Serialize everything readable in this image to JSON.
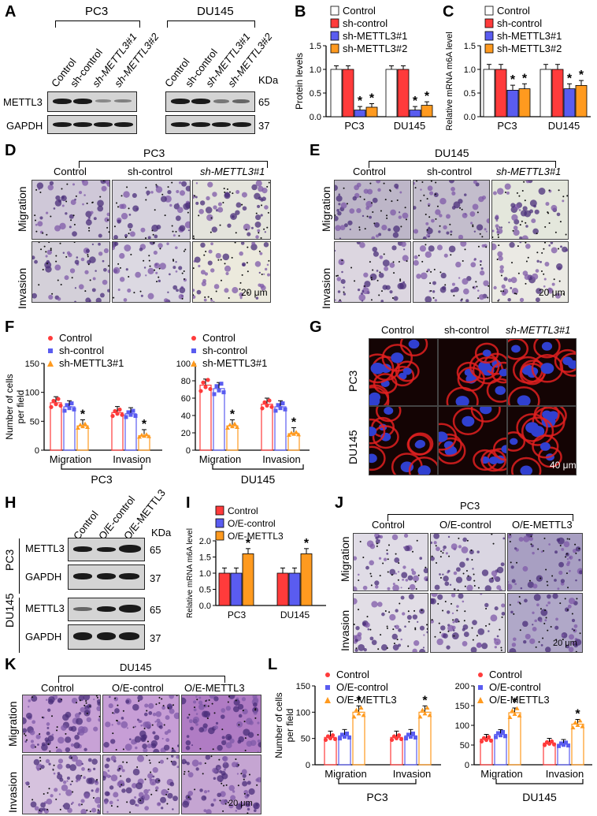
{
  "panel_letters": [
    "A",
    "B",
    "C",
    "D",
    "E",
    "F",
    "G",
    "H",
    "I",
    "J",
    "K",
    "L"
  ],
  "A": {
    "groups": [
      "PC3",
      "DU145"
    ],
    "lanes": [
      "Control",
      "sh-control",
      "sh-METTL3#1",
      "sh-METTL3#2"
    ],
    "rows": [
      "METTL3",
      "GAPDH"
    ],
    "kda": "KDa",
    "sizes": [
      "65",
      "37"
    ]
  },
  "B": {
    "ylabel": "Protein levels"
  },
  "C": {
    "ylabel": "Relative mRNA m6A level"
  },
  "legend4": [
    "Control",
    "sh-control",
    "sh-METTL3#1",
    "sh-METTL3#2"
  ],
  "legend3": [
    "Control",
    "sh-control",
    "sh-METTL3#1"
  ],
  "legendOE": [
    "Control",
    "O/E-control",
    "O/E-METTL3"
  ],
  "D": {
    "title": "PC3",
    "cols": [
      "Control",
      "sh-control",
      "sh-METTL3#1"
    ],
    "rows": [
      "Migration",
      "Invasion"
    ],
    "scale": "20 μm"
  },
  "E": {
    "title": "DU145",
    "cols": [
      "Control",
      "sh-control",
      "sh-METTL3#1"
    ],
    "rows": [
      "Migration",
      "Invasion"
    ],
    "scale": "20 μm"
  },
  "F": {
    "ylabel": "Number of cells per field",
    "groups": [
      "Migration",
      "Invasion"
    ],
    "cell_lines": [
      "PC3",
      "DU145"
    ]
  },
  "G": {
    "cols": [
      "Control",
      "sh-control",
      "sh-METTL3#1"
    ],
    "rows": [
      "PC3",
      "DU145"
    ],
    "scale": "40 μm"
  },
  "H": {
    "lanes": [
      "Control",
      "O/E-control",
      "O/E-METTL3"
    ],
    "kda": "KDa",
    "lines": [
      "PC3",
      "DU145"
    ],
    "rows": [
      "METTL3",
      "GAPDH"
    ],
    "sizes": [
      "65",
      "37"
    ]
  },
  "I": {
    "ylabel": "Relative mRNA m6A level",
    "star": "*"
  },
  "J": {
    "title": "PC3",
    "cols": [
      "Control",
      "O/E-control",
      "O/E-METTL3"
    ],
    "rows": [
      "Migration",
      "Invasion"
    ],
    "scale": "20 μm"
  },
  "K": {
    "title": "DU145",
    "cols": [
      "Control",
      "O/E-control",
      "O/E-METTL3"
    ],
    "rows": [
      "Migration",
      "Invasion"
    ],
    "scale": "20 μm"
  },
  "L": {
    "ylabel": "Number of cells per field"
  },
  "chart_data": [
    {
      "id": "B",
      "type": "bar",
      "categories": [
        "PC3",
        "DU145"
      ],
      "series": [
        {
          "name": "Control",
          "values": [
            1.0,
            1.0
          ]
        },
        {
          "name": "sh-control",
          "values": [
            1.0,
            1.0
          ]
        },
        {
          "name": "sh-METTL3#1",
          "values": [
            0.14,
            0.14
          ]
        },
        {
          "name": "sh-METTL3#2",
          "values": [
            0.2,
            0.24
          ]
        }
      ],
      "ylabel": "Protein levels",
      "ylim": [
        0,
        1.5
      ],
      "yticks": [
        "0.0",
        "0.5",
        "1.0",
        "1.5"
      ]
    },
    {
      "id": "C",
      "type": "bar",
      "categories": [
        "PC3",
        "DU145"
      ],
      "series": [
        {
          "name": "Control",
          "values": [
            1.0,
            1.0
          ]
        },
        {
          "name": "sh-control",
          "values": [
            1.0,
            1.0
          ]
        },
        {
          "name": "sh-METTL3#1",
          "values": [
            0.56,
            0.59
          ]
        },
        {
          "name": "sh-METTL3#2",
          "values": [
            0.59,
            0.66
          ]
        }
      ],
      "ylabel": "Relative mRNA m6A level",
      "ylim": [
        0,
        1.5
      ],
      "yticks": [
        "0.0",
        "0.5",
        "1.0",
        "1.5"
      ]
    },
    {
      "id": "F1",
      "type": "bar",
      "categories": [
        "Migration",
        "Invasion"
      ],
      "series": [
        {
          "name": "Control",
          "values": [
            82,
            65
          ]
        },
        {
          "name": "sh-control",
          "values": [
            75,
            63
          ]
        },
        {
          "name": "sh-METTL3#1",
          "values": [
            42,
            25
          ]
        }
      ],
      "ylabel": "Number of cells per field",
      "ylim": [
        0,
        150
      ],
      "yticks": [
        "0",
        "50",
        "100",
        "150"
      ]
    },
    {
      "id": "F2",
      "type": "bar",
      "categories": [
        "Migration",
        "Invasion"
      ],
      "series": [
        {
          "name": "Control",
          "values": [
            75,
            53
          ]
        },
        {
          "name": "sh-control",
          "values": [
            71,
            50
          ]
        },
        {
          "name": "sh-METTL3#1",
          "values": [
            28,
            19
          ]
        }
      ],
      "ylim": [
        0,
        100
      ],
      "yticks": [
        "0",
        "20",
        "40",
        "60",
        "80",
        "100"
      ]
    },
    {
      "id": "I",
      "type": "bar",
      "categories": [
        "PC3",
        "DU145"
      ],
      "series": [
        {
          "name": "Control",
          "values": [
            1.0,
            1.0
          ]
        },
        {
          "name": "O/E-control",
          "values": [
            1.0,
            1.0
          ]
        },
        {
          "name": "O/E-METTL3",
          "values": [
            1.6,
            1.6
          ]
        }
      ],
      "ylabel": "Relative mRNA m6A level",
      "ylim": [
        0,
        2.0
      ],
      "yticks": [
        "0.0",
        "0.5",
        "1.0",
        "1.5",
        "2.0"
      ]
    },
    {
      "id": "L1",
      "type": "bar",
      "categories": [
        "Migration",
        "Invasion"
      ],
      "series": [
        {
          "name": "Control",
          "values": [
            52,
            52
          ]
        },
        {
          "name": "O/E-control",
          "values": [
            55,
            55
          ]
        },
        {
          "name": "O/E-METTL3",
          "values": [
            100,
            100
          ]
        }
      ],
      "ylabel": "Number of cells per field",
      "ylim": [
        0,
        150
      ],
      "yticks": [
        "0",
        "50",
        "100",
        "150"
      ]
    },
    {
      "id": "L2",
      "type": "bar",
      "categories": [
        "Migration",
        "Invasion"
      ],
      "series": [
        {
          "name": "Control",
          "values": [
            65,
            55
          ]
        },
        {
          "name": "O/E-control",
          "values": [
            77,
            52
          ]
        },
        {
          "name": "O/E-METTL3",
          "values": [
            132,
            103
          ]
        }
      ],
      "ylim": [
        0,
        200
      ],
      "yticks": [
        "0",
        "50",
        "100",
        "150",
        "200"
      ]
    }
  ]
}
